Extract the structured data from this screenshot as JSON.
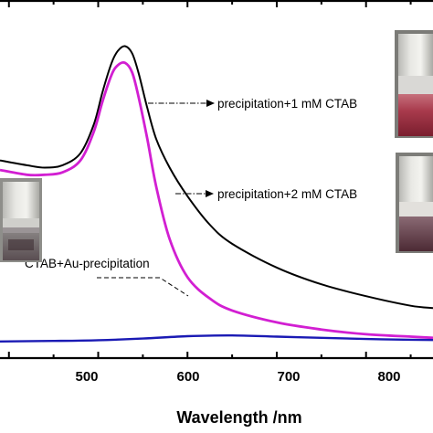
{
  "chart_data": {
    "type": "line",
    "title": "",
    "xlabel": "Wavelength /nm",
    "ylabel": "",
    "xlim": [
      390,
      875
    ],
    "ylim": [
      0,
      1.5
    ],
    "x_ticks": [
      500,
      600,
      700,
      800
    ],
    "x_tick_labels": [
      "500",
      "600",
      "700",
      "800"
    ],
    "grid": false,
    "legend": "none",
    "series": [
      {
        "name": "precipitation+1 mM CTAB",
        "color": "#000000",
        "x": [
          390,
          420,
          440,
          460,
          480,
          495,
          505,
          515,
          522,
          530,
          538,
          545,
          555,
          565,
          580,
          600,
          625,
          650,
          700,
          750,
          800,
          850,
          875
        ],
        "y": [
          0.83,
          0.81,
          0.8,
          0.81,
          0.86,
          0.98,
          1.12,
          1.24,
          1.29,
          1.31,
          1.28,
          1.2,
          1.05,
          0.92,
          0.8,
          0.68,
          0.56,
          0.48,
          0.38,
          0.31,
          0.26,
          0.22,
          0.21
        ]
      },
      {
        "name": "precipitation+2 mM CTAB",
        "color": "#d21fd2",
        "x": [
          390,
          420,
          440,
          460,
          480,
          495,
          505,
          515,
          522,
          530,
          538,
          545,
          555,
          565,
          580,
          600,
          625,
          650,
          700,
          750,
          800,
          850,
          875
        ],
        "y": [
          0.79,
          0.77,
          0.77,
          0.78,
          0.83,
          0.95,
          1.08,
          1.19,
          1.23,
          1.24,
          1.2,
          1.1,
          0.92,
          0.72,
          0.5,
          0.34,
          0.25,
          0.2,
          0.15,
          0.12,
          0.1,
          0.09,
          0.085
        ]
      },
      {
        "name": "CTAB+Au-precipitation",
        "color": "#1a1ab4",
        "x": [
          390,
          450,
          500,
          550,
          600,
          650,
          700,
          750,
          800,
          850,
          875
        ],
        "y": [
          0.07,
          0.072,
          0.075,
          0.082,
          0.092,
          0.095,
          0.09,
          0.085,
          0.08,
          0.077,
          0.076
        ]
      }
    ],
    "annotations": [
      {
        "text": "precipitation+1 mM CTAB",
        "points_to": "precipitation+1 mM CTAB"
      },
      {
        "text": "precipitation+2 mM CTAB",
        "points_to": "precipitation+2 mM CTAB"
      },
      {
        "text": "CTAB+Au-precipitation",
        "points_to": "CTAB+Au-precipitation"
      }
    ]
  }
}
